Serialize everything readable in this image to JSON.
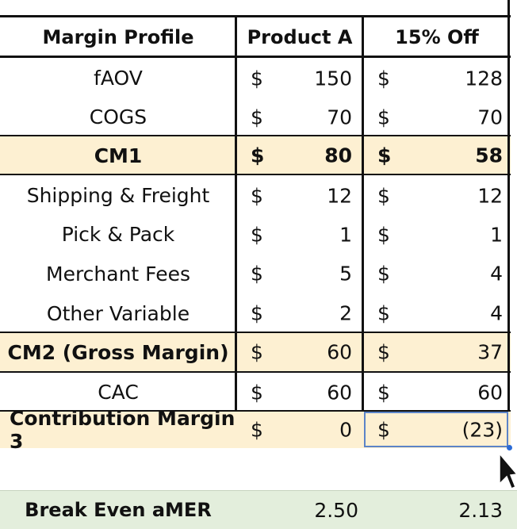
{
  "header": {
    "label": "Margin Profile",
    "col_a": "Product A",
    "col_b": "15% Off"
  },
  "currency": "$",
  "rows": [
    {
      "label": "fAOV",
      "a": "150",
      "b": "128"
    },
    {
      "label": "COGS",
      "a": "70",
      "b": "70"
    },
    {
      "label": "CM1",
      "a": "80",
      "b": "58"
    },
    {
      "label": "Shipping & Freight",
      "a": "12",
      "b": "12"
    },
    {
      "label": "Pick & Pack",
      "a": "1",
      "b": "1"
    },
    {
      "label": "Merchant Fees",
      "a": "5",
      "b": "4"
    },
    {
      "label": "Other Variable",
      "a": "2",
      "b": "4"
    },
    {
      "label": "CM2 (Gross Margin)",
      "a": "60",
      "b": "37"
    },
    {
      "label": "CAC",
      "a": "60",
      "b": "60"
    },
    {
      "label": "Contribution Margin 3",
      "a": "0",
      "b": "(23)"
    }
  ],
  "break_even": {
    "label": "Break Even aMER",
    "a": "2.50",
    "b": "2.13"
  },
  "colors": {
    "highlight": "#fdf0d2",
    "break_even_bg": "#e3eedc",
    "selection": "#5b84c8"
  }
}
